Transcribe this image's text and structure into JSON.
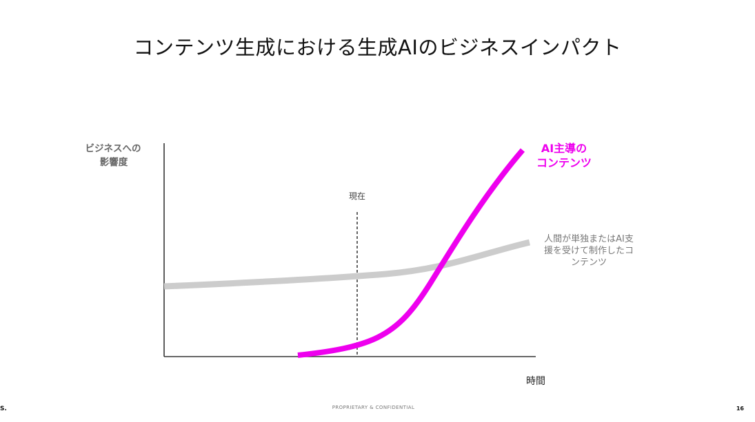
{
  "slide": {
    "title": "コンテンツ生成における生成AIのビジネスインパクト"
  },
  "chart_data": {
    "type": "line",
    "ylabel_line1": "ビジネスへの",
    "ylabel_line2": "影響度",
    "xlabel": "時間",
    "marker_label": "現在",
    "series": [
      {
        "name_line1": "AI主導の",
        "name_line2": "コンテンツ",
        "color": "#ee00ee",
        "trend": "flat, then sharply rising after present (exponential)"
      },
      {
        "name_line1": "人間が単独またはAI支",
        "name_line2": "援を受けて制作したコ",
        "name_line3": "ンテンツ",
        "color": "#cccccc",
        "trend": "gently rising"
      }
    ],
    "ticks": "none",
    "grid": false
  },
  "colors": {
    "ai_series": "#ee00ee",
    "human_series": "#cccccc",
    "axis": "#333333",
    "marker_line": "#222222"
  },
  "footer": {
    "left_text": "S.",
    "center_text": "PROPRIETARY & CONFIDENTIAL",
    "page_number": "16"
  }
}
